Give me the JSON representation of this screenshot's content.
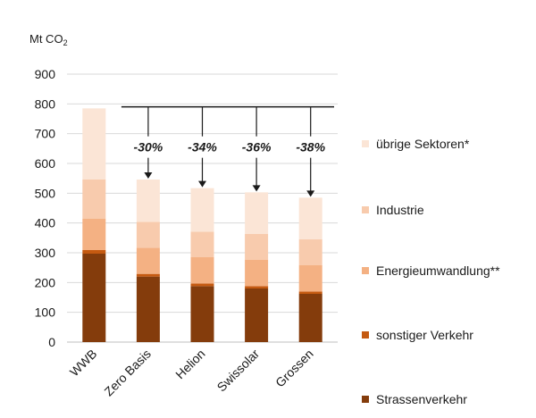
{
  "chart_data": {
    "type": "bar",
    "stacked": true,
    "ylabel_main": "Mt CO",
    "ylabel_sub": "2",
    "ylim": [
      0,
      900
    ],
    "yticks": [
      0,
      100,
      200,
      300,
      400,
      500,
      600,
      700,
      800,
      900
    ],
    "grid": true,
    "legend_position": "right",
    "categories": [
      "WWB",
      "Zero Basis",
      "Helion",
      "Swissolar",
      "Grossen"
    ],
    "series": [
      {
        "name": "Strassenverkehr",
        "color": "#843C0C",
        "values": [
          297,
          220,
          188,
          180,
          162
        ]
      },
      {
        "name": "sonstiger Verkehr",
        "color": "#C55A11",
        "values": [
          12,
          9,
          9,
          8,
          8
        ]
      },
      {
        "name": "Energieumwandlung**",
        "color": "#F4B183",
        "values": [
          105,
          88,
          88,
          88,
          88
        ]
      },
      {
        "name": "Industrie",
        "color": "#F8CBAD",
        "values": [
          132,
          87,
          86,
          87,
          87
        ]
      },
      {
        "name": "übrige Sektoren*",
        "color": "#FBE5D6",
        "values": [
          239,
          142,
          146,
          140,
          140
        ]
      }
    ],
    "reference_line": {
      "value": 790,
      "from_category": "Zero Basis"
    },
    "annotations": [
      "-30%",
      "-34%",
      "-36%",
      "-38%"
    ]
  }
}
